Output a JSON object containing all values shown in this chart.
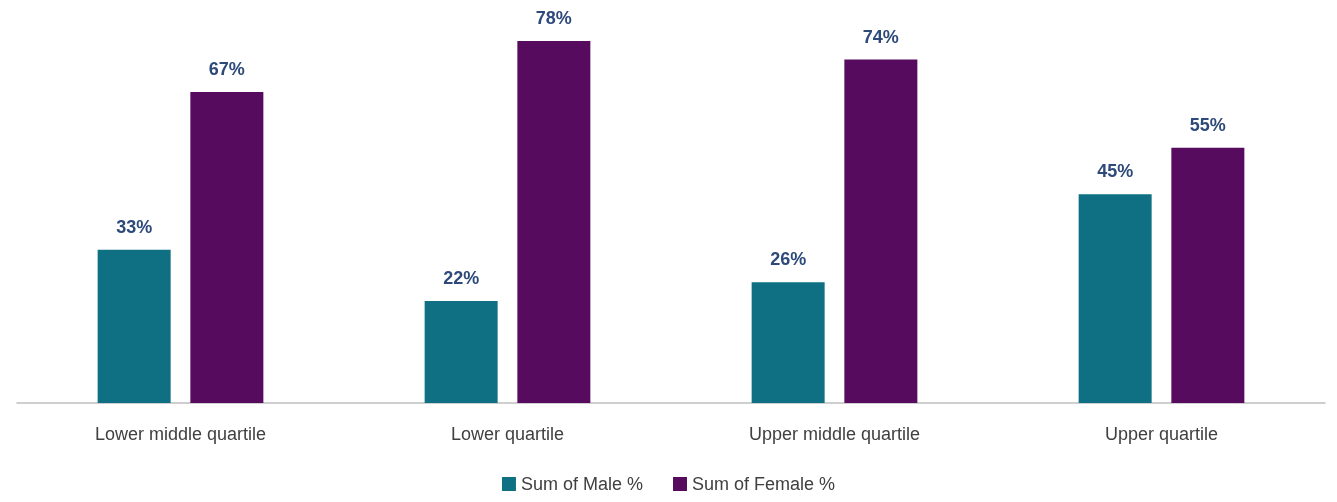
{
  "chart_data": {
    "type": "bar",
    "categories": [
      "Lower middle quartile",
      "Lower quartile",
      "Upper middle quartile",
      "Upper quartile"
    ],
    "series": [
      {
        "name": "Sum of Male %",
        "color": "#0e7082",
        "values": [
          33,
          22,
          26,
          45
        ],
        "value_labels": [
          "33%",
          "22%",
          "26%",
          "45%"
        ]
      },
      {
        "name": "Sum of Female %",
        "color": "#560b5e",
        "values": [
          67,
          78,
          74,
          55
        ],
        "value_labels": [
          "67%",
          "78%",
          "74%",
          "55%"
        ]
      }
    ],
    "grid": false,
    "legend": "bottom"
  }
}
